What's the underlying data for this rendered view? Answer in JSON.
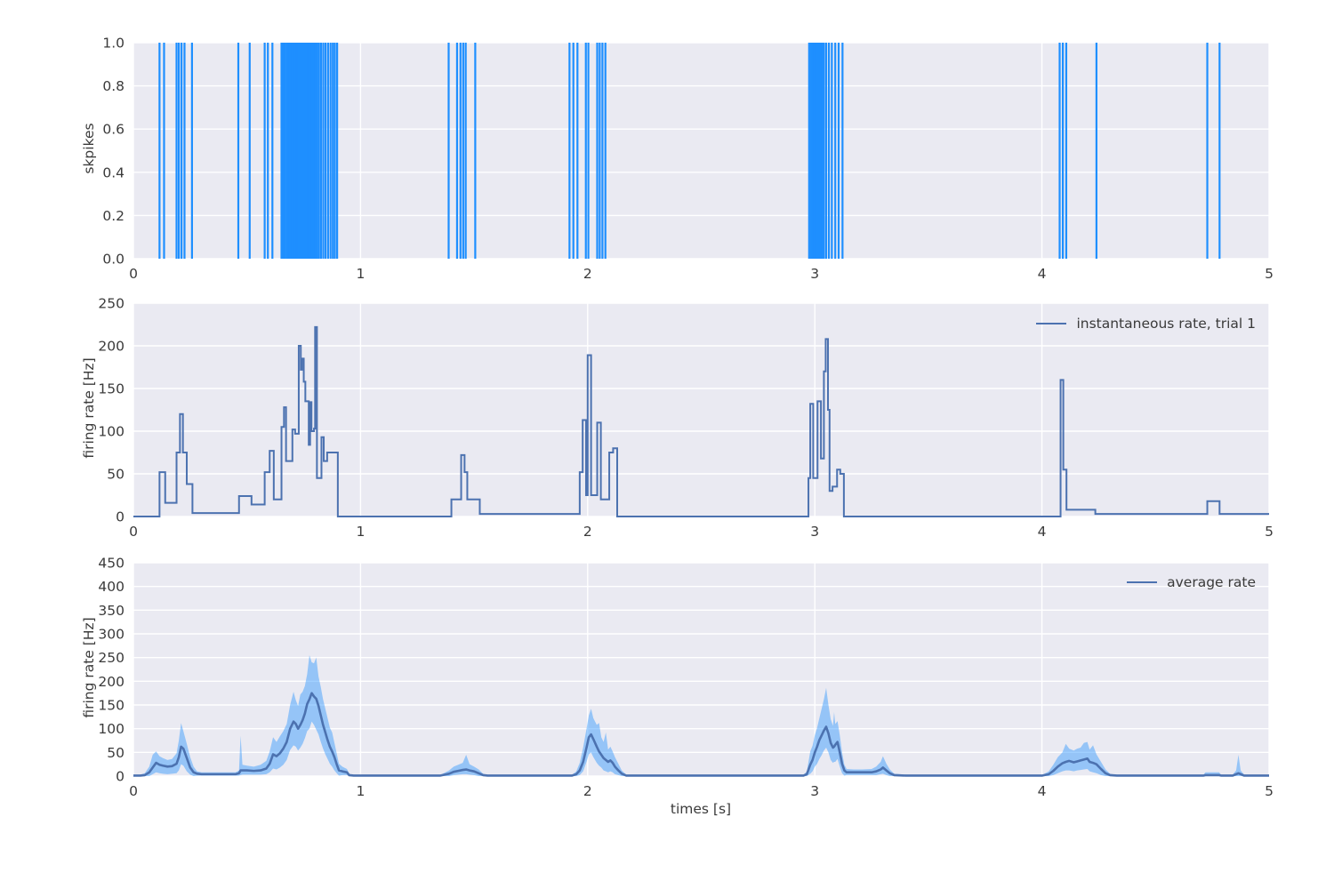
{
  "figure": {
    "background": "#ffffff",
    "axes_background": "#eaeaf2",
    "grid_color": "#ffffff",
    "text_color": "#3b3b3b"
  },
  "chart_data": [
    {
      "type": "event-raster",
      "ylabel": "skpikes",
      "xlim": [
        0,
        5
      ],
      "ylim": [
        0.0,
        1.0
      ],
      "xticks": [
        "0",
        "1",
        "2",
        "3",
        "4",
        "5"
      ],
      "yticks": [
        "0.0",
        "0.2",
        "0.4",
        "0.6",
        "0.8",
        "1.0"
      ],
      "line_color": "#1e8fff",
      "events": [
        0.115,
        0.135,
        0.19,
        0.2,
        0.212,
        0.225,
        0.258,
        0.462,
        0.512,
        0.578,
        0.592,
        0.612,
        0.652,
        0.66,
        0.668,
        0.676,
        0.682,
        0.688,
        0.694,
        0.7,
        0.706,
        0.712,
        0.717,
        0.722,
        0.727,
        0.732,
        0.737,
        0.742,
        0.747,
        0.752,
        0.757,
        0.762,
        0.768,
        0.774,
        0.78,
        0.787,
        0.794,
        0.801,
        0.809,
        0.817,
        0.826,
        0.836,
        0.846,
        0.857,
        0.868,
        0.878,
        0.887,
        0.897,
        1.388,
        1.425,
        1.44,
        1.452,
        1.463,
        1.505,
        1.92,
        1.937,
        1.955,
        1.992,
        2.003,
        2.042,
        2.053,
        2.065,
        2.078,
        2.975,
        2.983,
        2.99,
        2.997,
        3.004,
        3.011,
        3.018,
        3.025,
        3.032,
        3.04,
        3.05,
        3.062,
        3.075,
        3.09,
        3.105,
        3.122,
        4.078,
        4.092,
        4.107,
        4.24,
        4.728,
        4.782
      ]
    },
    {
      "type": "step",
      "legend": "instantaneous rate, trial 1",
      "ylabel": "firing rate [Hz]",
      "xlim": [
        0,
        5
      ],
      "ylim": [
        0,
        250
      ],
      "xticks": [
        "0",
        "1",
        "2",
        "3",
        "4",
        "5"
      ],
      "yticks": [
        "0",
        "50",
        "100",
        "150",
        "200",
        "250"
      ],
      "line_color": "#4c72b0",
      "steps": [
        [
          0.0,
          0
        ],
        [
          0.115,
          52
        ],
        [
          0.14,
          16
        ],
        [
          0.19,
          75
        ],
        [
          0.205,
          120
        ],
        [
          0.218,
          75
        ],
        [
          0.235,
          38
        ],
        [
          0.26,
          4
        ],
        [
          0.465,
          24
        ],
        [
          0.52,
          14
        ],
        [
          0.578,
          52
        ],
        [
          0.6,
          77
        ],
        [
          0.618,
          20
        ],
        [
          0.652,
          105
        ],
        [
          0.663,
          128
        ],
        [
          0.672,
          65
        ],
        [
          0.7,
          102
        ],
        [
          0.712,
          97
        ],
        [
          0.728,
          200
        ],
        [
          0.737,
          172
        ],
        [
          0.742,
          185
        ],
        [
          0.75,
          158
        ],
        [
          0.757,
          135
        ],
        [
          0.772,
          84
        ],
        [
          0.778,
          134
        ],
        [
          0.784,
          100
        ],
        [
          0.795,
          103
        ],
        [
          0.8,
          222
        ],
        [
          0.808,
          45
        ],
        [
          0.828,
          93
        ],
        [
          0.838,
          65
        ],
        [
          0.853,
          75
        ],
        [
          0.9,
          0
        ],
        [
          1.4,
          20
        ],
        [
          1.443,
          72
        ],
        [
          1.458,
          52
        ],
        [
          1.47,
          20
        ],
        [
          1.525,
          3
        ],
        [
          1.965,
          52
        ],
        [
          1.978,
          113
        ],
        [
          1.993,
          25
        ],
        [
          2.0,
          189
        ],
        [
          2.015,
          25
        ],
        [
          2.042,
          110
        ],
        [
          2.058,
          20
        ],
        [
          2.095,
          75
        ],
        [
          2.112,
          80
        ],
        [
          2.13,
          0
        ],
        [
          2.972,
          45
        ],
        [
          2.98,
          132
        ],
        [
          2.993,
          45
        ],
        [
          3.012,
          135
        ],
        [
          3.027,
          68
        ],
        [
          3.04,
          170
        ],
        [
          3.048,
          208
        ],
        [
          3.058,
          125
        ],
        [
          3.065,
          30
        ],
        [
          3.078,
          35
        ],
        [
          3.098,
          55
        ],
        [
          3.112,
          50
        ],
        [
          3.128,
          0
        ],
        [
          4.082,
          160
        ],
        [
          4.094,
          55
        ],
        [
          4.108,
          8
        ],
        [
          4.235,
          3
        ],
        [
          4.728,
          18
        ],
        [
          4.782,
          3
        ],
        [
          5.0,
          3
        ]
      ]
    },
    {
      "type": "line-band",
      "legend": "average rate",
      "ylabel": "firing rate [Hz]",
      "xlabel": "times [s]",
      "xlim": [
        0,
        5
      ],
      "ylim": [
        0,
        450
      ],
      "xticks": [
        "0",
        "1",
        "2",
        "3",
        "4",
        "5"
      ],
      "yticks": [
        "0",
        "50",
        "100",
        "150",
        "200",
        "250",
        "300",
        "350",
        "400",
        "450"
      ],
      "mean_color": "#4c72b0",
      "band_color": "#1e8fff",
      "band_opacity": 0.42,
      "points": [
        [
          0.0,
          1,
          0,
          2
        ],
        [
          0.03,
          1,
          0,
          3
        ],
        [
          0.05,
          2,
          0,
          6
        ],
        [
          0.07,
          8,
          0,
          20
        ],
        [
          0.085,
          18,
          4,
          45
        ],
        [
          0.1,
          28,
          8,
          52
        ],
        [
          0.115,
          24,
          6,
          42
        ],
        [
          0.13,
          22,
          5,
          38
        ],
        [
          0.15,
          20,
          4,
          34
        ],
        [
          0.17,
          21,
          5,
          36
        ],
        [
          0.19,
          26,
          6,
          48
        ],
        [
          0.2,
          40,
          12,
          75
        ],
        [
          0.21,
          62,
          25,
          112
        ],
        [
          0.22,
          58,
          22,
          95
        ],
        [
          0.235,
          38,
          10,
          68
        ],
        [
          0.25,
          18,
          3,
          40
        ],
        [
          0.265,
          8,
          0,
          20
        ],
        [
          0.28,
          5,
          1,
          10
        ],
        [
          0.3,
          4,
          1,
          8
        ],
        [
          0.4,
          4,
          1,
          8
        ],
        [
          0.45,
          4,
          1,
          8
        ],
        [
          0.465,
          6,
          1,
          12
        ],
        [
          0.472,
          12,
          2,
          85
        ],
        [
          0.48,
          12,
          3,
          24
        ],
        [
          0.5,
          12,
          3,
          22
        ],
        [
          0.53,
          11,
          3,
          20
        ],
        [
          0.56,
          12,
          3,
          24
        ],
        [
          0.585,
          16,
          4,
          32
        ],
        [
          0.6,
          26,
          8,
          52
        ],
        [
          0.615,
          46,
          16,
          82
        ],
        [
          0.63,
          42,
          14,
          72
        ],
        [
          0.645,
          48,
          18,
          84
        ],
        [
          0.66,
          58,
          24,
          95
        ],
        [
          0.675,
          72,
          34,
          110
        ],
        [
          0.69,
          100,
          55,
          150
        ],
        [
          0.705,
          115,
          65,
          178
        ],
        [
          0.715,
          110,
          62,
          160
        ],
        [
          0.725,
          100,
          54,
          148
        ],
        [
          0.735,
          108,
          60,
          172
        ],
        [
          0.745,
          118,
          68,
          178
        ],
        [
          0.755,
          132,
          80,
          190
        ],
        [
          0.765,
          152,
          95,
          215
        ],
        [
          0.775,
          162,
          100,
          255
        ],
        [
          0.785,
          175,
          115,
          240
        ],
        [
          0.795,
          168,
          108,
          238
        ],
        [
          0.805,
          163,
          98,
          250
        ],
        [
          0.815,
          148,
          88,
          210
        ],
        [
          0.825,
          128,
          72,
          188
        ],
        [
          0.835,
          108,
          58,
          162
        ],
        [
          0.845,
          92,
          46,
          142
        ],
        [
          0.855,
          76,
          36,
          122
        ],
        [
          0.865,
          62,
          26,
          102
        ],
        [
          0.875,
          52,
          20,
          92
        ],
        [
          0.885,
          40,
          12,
          70
        ],
        [
          0.895,
          25,
          6,
          48
        ],
        [
          0.905,
          12,
          1,
          26
        ],
        [
          0.92,
          10,
          2,
          20
        ],
        [
          0.94,
          8,
          2,
          15
        ],
        [
          0.95,
          2,
          0,
          5
        ],
        [
          0.97,
          1,
          0,
          2
        ],
        [
          1.35,
          1,
          0,
          2
        ],
        [
          1.39,
          5,
          0,
          12
        ],
        [
          1.41,
          9,
          2,
          20
        ],
        [
          1.43,
          11,
          3,
          24
        ],
        [
          1.45,
          13,
          4,
          28
        ],
        [
          1.465,
          14,
          4,
          45
        ],
        [
          1.48,
          12,
          3,
          25
        ],
        [
          1.5,
          10,
          2,
          20
        ],
        [
          1.52,
          6,
          0,
          14
        ],
        [
          1.54,
          2,
          0,
          5
        ],
        [
          1.56,
          1,
          0,
          2
        ],
        [
          1.93,
          1,
          0,
          2
        ],
        [
          1.95,
          4,
          0,
          10
        ],
        [
          1.965,
          12,
          2,
          28
        ],
        [
          1.98,
          30,
          10,
          60
        ],
        [
          1.995,
          60,
          30,
          100
        ],
        [
          2.005,
          82,
          46,
          128
        ],
        [
          2.015,
          88,
          50,
          142
        ],
        [
          2.025,
          78,
          40,
          122
        ],
        [
          2.04,
          62,
          28,
          108
        ],
        [
          2.05,
          52,
          22,
          112
        ],
        [
          2.06,
          45,
          18,
          82
        ],
        [
          2.07,
          38,
          12,
          72
        ],
        [
          2.08,
          34,
          10,
          92
        ],
        [
          2.09,
          30,
          8,
          56
        ],
        [
          2.1,
          33,
          10,
          62
        ],
        [
          2.11,
          28,
          8,
          52
        ],
        [
          2.12,
          20,
          4,
          40
        ],
        [
          2.135,
          12,
          2,
          26
        ],
        [
          2.15,
          5,
          0,
          12
        ],
        [
          2.17,
          1,
          0,
          3
        ],
        [
          2.95,
          1,
          0,
          2
        ],
        [
          2.965,
          4,
          0,
          10
        ],
        [
          2.98,
          24,
          5,
          52
        ],
        [
          2.99,
          34,
          10,
          64
        ],
        [
          3.0,
          50,
          20,
          86
        ],
        [
          3.01,
          62,
          26,
          102
        ],
        [
          3.02,
          76,
          36,
          122
        ],
        [
          3.03,
          86,
          44,
          142
        ],
        [
          3.04,
          96,
          54,
          162
        ],
        [
          3.05,
          104,
          60,
          186
        ],
        [
          3.06,
          90,
          50,
          150
        ],
        [
          3.07,
          70,
          34,
          120
        ],
        [
          3.08,
          60,
          28,
          106
        ],
        [
          3.085,
          62,
          30,
          135
        ],
        [
          3.09,
          66,
          30,
          110
        ],
        [
          3.1,
          72,
          36,
          116
        ],
        [
          3.11,
          50,
          20,
          86
        ],
        [
          3.12,
          26,
          6,
          50
        ],
        [
          3.13,
          12,
          1,
          24
        ],
        [
          3.14,
          8,
          2,
          15
        ],
        [
          3.17,
          8,
          2,
          14
        ],
        [
          3.21,
          8,
          2,
          14
        ],
        [
          3.25,
          8,
          2,
          15
        ],
        [
          3.27,
          10,
          2,
          20
        ],
        [
          3.29,
          14,
          4,
          30
        ],
        [
          3.3,
          18,
          5,
          42
        ],
        [
          3.315,
          12,
          2,
          26
        ],
        [
          3.33,
          6,
          0,
          14
        ],
        [
          3.35,
          2,
          0,
          5
        ],
        [
          3.4,
          1,
          0,
          3
        ],
        [
          3.43,
          1,
          0,
          2
        ],
        [
          4.0,
          1,
          0,
          2
        ],
        [
          4.03,
          4,
          0,
          10
        ],
        [
          4.05,
          11,
          2,
          24
        ],
        [
          4.07,
          20,
          6,
          40
        ],
        [
          4.09,
          27,
          10,
          50
        ],
        [
          4.105,
          30,
          12,
          68
        ],
        [
          4.12,
          32,
          12,
          58
        ],
        [
          4.14,
          29,
          10,
          54
        ],
        [
          4.155,
          31,
          12,
          58
        ],
        [
          4.17,
          33,
          13,
          60
        ],
        [
          4.185,
          35,
          14,
          70
        ],
        [
          4.2,
          37,
          15,
          72
        ],
        [
          4.21,
          30,
          10,
          56
        ],
        [
          4.225,
          28,
          8,
          65
        ],
        [
          4.24,
          25,
          6,
          46
        ],
        [
          4.26,
          15,
          2,
          30
        ],
        [
          4.28,
          6,
          0,
          14
        ],
        [
          4.3,
          2,
          0,
          5
        ],
        [
          4.33,
          1,
          0,
          2
        ],
        [
          4.71,
          1,
          0,
          2
        ],
        [
          4.72,
          2,
          0,
          8
        ],
        [
          4.78,
          2,
          0,
          8
        ],
        [
          4.79,
          1,
          0,
          2
        ],
        [
          4.84,
          1,
          0,
          3
        ],
        [
          4.855,
          4,
          0,
          12
        ],
        [
          4.865,
          6,
          0,
          45
        ],
        [
          4.875,
          4,
          0,
          12
        ],
        [
          4.89,
          1,
          0,
          3
        ],
        [
          5.0,
          1,
          0,
          2
        ]
      ]
    }
  ]
}
